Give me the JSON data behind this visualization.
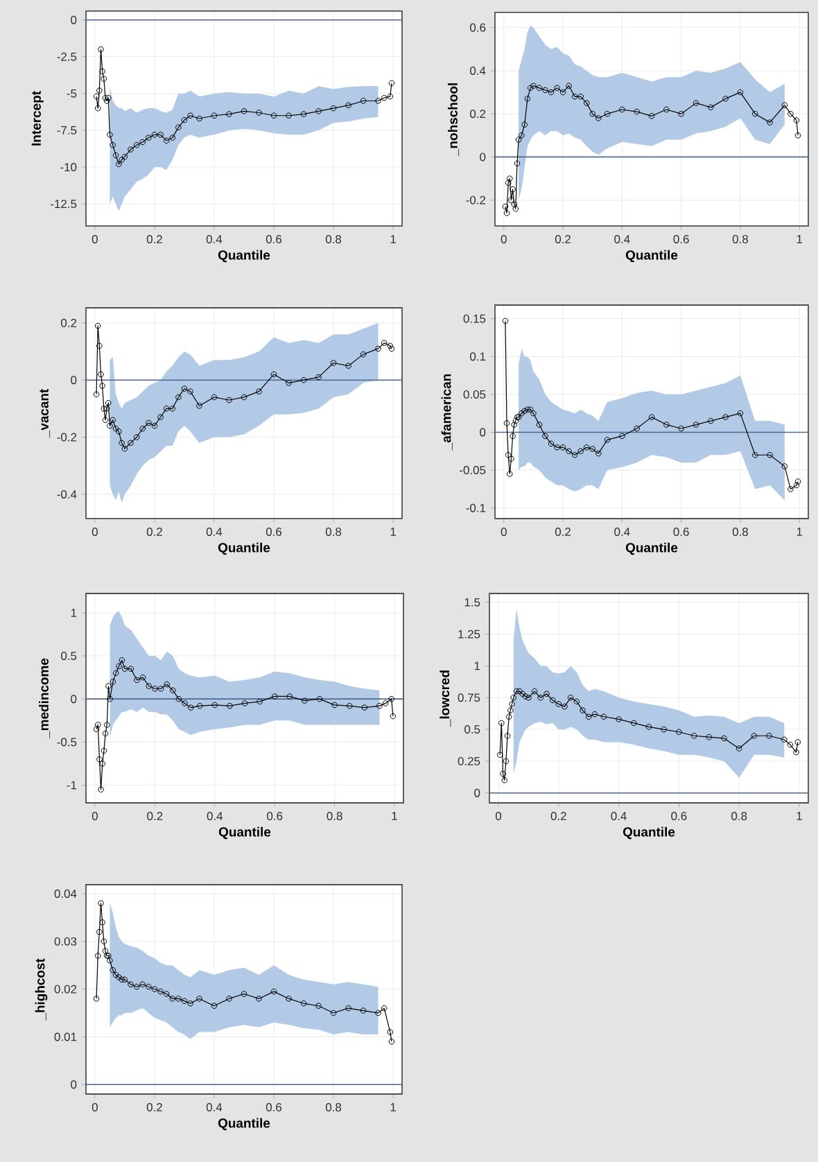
{
  "chart_data": [
    {
      "type": "line",
      "xlabel": "Quantile",
      "ylabel": "Intercept",
      "xlim": [
        -0.03,
        1.03
      ],
      "xticks": [
        0,
        0.2,
        0.4,
        0.6,
        0.8,
        1
      ],
      "ylim": [
        -14,
        0.6
      ],
      "yticks": [
        0,
        -2.5,
        -5,
        -7.5,
        -10,
        -12.5
      ],
      "grid": true,
      "marker": "circle",
      "ref_lines": [
        {
          "axis": "y",
          "value": 0,
          "color": "#4a6890"
        }
      ],
      "x": [
        0.005,
        0.01,
        0.015,
        0.02,
        0.025,
        0.03,
        0.035,
        0.04,
        0.045,
        0.05,
        0.06,
        0.07,
        0.08,
        0.09,
        0.1,
        0.12,
        0.14,
        0.16,
        0.18,
        0.2,
        0.22,
        0.24,
        0.26,
        0.28,
        0.3,
        0.32,
        0.35,
        0.4,
        0.45,
        0.5,
        0.55,
        0.6,
        0.65,
        0.7,
        0.75,
        0.8,
        0.85,
        0.9,
        0.95,
        0.97,
        0.99,
        0.995
      ],
      "series": [
        {
          "color": "#000000",
          "values": [
            -5.2,
            -6,
            -4.8,
            -2,
            -3.5,
            -4,
            -5.3,
            -5.5,
            -5.3,
            -7.8,
            -8.5,
            -9.2,
            -9.8,
            -9.5,
            -9.3,
            -8.8,
            -8.5,
            -8.3,
            -8,
            -7.8,
            -7.8,
            -8.2,
            -8,
            -7.3,
            -6.8,
            -6.5,
            -6.7,
            -6.5,
            -6.4,
            -6.2,
            -6.3,
            -6.5,
            -6.5,
            -6.4,
            -6.2,
            -6,
            -5.8,
            -5.5,
            -5.5,
            -5.3,
            -5.2,
            -4.3
          ],
          "upper": [
            null,
            null,
            null,
            null,
            null,
            null,
            null,
            null,
            null,
            -4.5,
            -5.5,
            -5.8,
            -6,
            -6,
            -6.2,
            -6,
            -6.3,
            -6.1,
            -6,
            -6,
            -6.2,
            -6.3,
            -6.1,
            -5,
            -5,
            -4.8,
            -5.2,
            -5,
            -4.9,
            -5,
            -5,
            -5.2,
            -4.8,
            -5,
            -4.5,
            -4.7,
            -4.55,
            -4.5,
            -4.5,
            null,
            null,
            null
          ],
          "lower": [
            null,
            null,
            null,
            null,
            null,
            null,
            null,
            null,
            null,
            -12.5,
            -12,
            -12.5,
            -13,
            -12.5,
            -12,
            -11.5,
            -11,
            -10.8,
            -10.5,
            -10,
            -10,
            -10.2,
            -9.5,
            -8.5,
            -8,
            -7.8,
            -8,
            -7.8,
            -7.5,
            -7.4,
            -7.5,
            -7.7,
            -7.8,
            -7.8,
            -7.5,
            -7,
            -6.9,
            -6.7,
            -6.6,
            null,
            null,
            null
          ]
        }
      ]
    },
    {
      "type": "line",
      "xlabel": "Quantile",
      "ylabel": "_nohschool",
      "xlim": [
        -0.03,
        1.03
      ],
      "xticks": [
        0,
        0.2,
        0.4,
        0.6,
        0.8,
        1
      ],
      "ylim": [
        -0.32,
        0.67
      ],
      "yticks": [
        -0.2,
        0,
        0.2,
        0.4,
        0.6
      ],
      "grid": true,
      "marker": "circle",
      "ref_lines": [
        {
          "axis": "y",
          "value": 0,
          "color": "#4a6890"
        }
      ],
      "x": [
        0.005,
        0.01,
        0.015,
        0.02,
        0.025,
        0.03,
        0.035,
        0.04,
        0.045,
        0.05,
        0.06,
        0.07,
        0.08,
        0.09,
        0.1,
        0.12,
        0.14,
        0.16,
        0.18,
        0.2,
        0.22,
        0.24,
        0.26,
        0.28,
        0.3,
        0.32,
        0.35,
        0.4,
        0.45,
        0.5,
        0.55,
        0.6,
        0.65,
        0.7,
        0.75,
        0.8,
        0.85,
        0.9,
        0.95,
        0.97,
        0.99,
        0.995
      ],
      "series": [
        {
          "color": "#000000",
          "values": [
            -0.23,
            -0.26,
            -0.12,
            -0.1,
            -0.2,
            -0.15,
            -0.22,
            -0.24,
            -0.03,
            0.08,
            0.1,
            0.15,
            0.27,
            0.32,
            0.33,
            0.32,
            0.31,
            0.3,
            0.32,
            0.3,
            0.33,
            0.28,
            0.28,
            0.25,
            0.2,
            0.18,
            0.2,
            0.22,
            0.21,
            0.19,
            0.22,
            0.2,
            0.25,
            0.23,
            0.27,
            0.3,
            0.2,
            0.16,
            0.24,
            0.2,
            0.17,
            0.1
          ],
          "upper": [
            null,
            null,
            null,
            null,
            null,
            null,
            null,
            null,
            null,
            0.4,
            0.45,
            0.5,
            0.58,
            0.61,
            0.6,
            0.56,
            0.52,
            0.5,
            0.51,
            0.48,
            0.47,
            0.43,
            0.42,
            0.4,
            0.38,
            0.37,
            0.37,
            0.39,
            0.37,
            0.35,
            0.37,
            0.37,
            0.4,
            0.39,
            0.41,
            0.44,
            0.36,
            0.3,
            0.34,
            null,
            null,
            null
          ],
          "lower": [
            null,
            null,
            null,
            null,
            null,
            null,
            null,
            null,
            null,
            -0.2,
            -0.15,
            -0.05,
            0.05,
            0.08,
            0.1,
            0.12,
            0.1,
            0.12,
            0.12,
            0.1,
            0.11,
            0.09,
            0.08,
            0.05,
            0.025,
            0.01,
            0.04,
            0.07,
            0.06,
            0.05,
            0.08,
            0.08,
            0.11,
            0.12,
            0.14,
            0.18,
            0.08,
            0.06,
            0.15,
            null,
            null,
            null
          ]
        }
      ]
    },
    {
      "type": "line",
      "xlabel": "Quantile",
      "ylabel": "_vacant",
      "xlim": [
        -0.03,
        1.03
      ],
      "xticks": [
        0,
        0.2,
        0.4,
        0.6,
        0.8,
        1
      ],
      "ylim": [
        -0.485,
        0.253
      ],
      "yticks": [
        -0.4,
        -0.2,
        0,
        0.2
      ],
      "grid": true,
      "marker": "circle",
      "ref_lines": [
        {
          "axis": "y",
          "value": 0,
          "color": "#4a6890"
        }
      ],
      "x": [
        0.005,
        0.01,
        0.015,
        0.02,
        0.025,
        0.03,
        0.035,
        0.04,
        0.045,
        0.05,
        0.06,
        0.07,
        0.08,
        0.09,
        0.1,
        0.12,
        0.14,
        0.16,
        0.18,
        0.2,
        0.22,
        0.24,
        0.26,
        0.28,
        0.3,
        0.32,
        0.35,
        0.4,
        0.45,
        0.5,
        0.55,
        0.6,
        0.65,
        0.7,
        0.75,
        0.8,
        0.85,
        0.9,
        0.95,
        0.97,
        0.99,
        0.995
      ],
      "series": [
        {
          "color": "#000000",
          "values": [
            -0.05,
            0.19,
            0.12,
            0.02,
            -0.02,
            -0.1,
            -0.14,
            -0.1,
            -0.08,
            -0.16,
            -0.14,
            -0.17,
            -0.18,
            -0.22,
            -0.24,
            -0.22,
            -0.2,
            -0.17,
            -0.15,
            -0.16,
            -0.13,
            -0.1,
            -0.1,
            -0.06,
            -0.03,
            -0.04,
            -0.09,
            -0.06,
            -0.07,
            -0.06,
            -0.04,
            0.02,
            -0.01,
            0,
            0.01,
            0.06,
            0.05,
            0.09,
            0.11,
            0.13,
            0.12,
            0.11
          ],
          "upper": [
            null,
            null,
            null,
            null,
            null,
            null,
            null,
            null,
            null,
            0.07,
            0.08,
            -0.05,
            -0.08,
            -0.1,
            -0.08,
            -0.07,
            -0.06,
            -0.04,
            -0.02,
            -0.01,
            0,
            0.03,
            0.05,
            0.08,
            0.1,
            0.09,
            0.05,
            0.07,
            0.07,
            0.08,
            0.1,
            0.15,
            0.13,
            0.14,
            0.13,
            0.16,
            0.16,
            0.18,
            0.2,
            null,
            null,
            null
          ],
          "lower": [
            null,
            null,
            null,
            null,
            null,
            null,
            null,
            null,
            null,
            -0.37,
            -0.4,
            -0.42,
            -0.39,
            -0.43,
            -0.4,
            -0.37,
            -0.33,
            -0.3,
            -0.28,
            -0.27,
            -0.25,
            -0.23,
            -0.23,
            -0.18,
            -0.16,
            -0.18,
            -0.22,
            -0.2,
            -0.2,
            -0.19,
            -0.16,
            -0.12,
            -0.12,
            -0.115,
            -0.1,
            -0.06,
            -0.05,
            -0.01,
            0,
            null,
            null,
            null
          ]
        }
      ]
    },
    {
      "type": "line",
      "xlabel": "Quantile",
      "ylabel": "_afamerican",
      "xlim": [
        -0.03,
        1.03
      ],
      "xticks": [
        0,
        0.2,
        0.4,
        0.6,
        0.8,
        1
      ],
      "ylim": [
        -0.114,
        0.168
      ],
      "yticks": [
        -0.1,
        -0.05,
        0,
        0.05,
        0.1,
        0.15
      ],
      "grid": true,
      "marker": "circle",
      "ref_lines": [
        {
          "axis": "y",
          "value": 0,
          "color": "#4a6890"
        }
      ],
      "x": [
        0.005,
        0.01,
        0.015,
        0.02,
        0.025,
        0.03,
        0.035,
        0.04,
        0.045,
        0.05,
        0.06,
        0.07,
        0.08,
        0.09,
        0.1,
        0.12,
        0.14,
        0.16,
        0.18,
        0.2,
        0.22,
        0.24,
        0.26,
        0.28,
        0.3,
        0.32,
        0.35,
        0.4,
        0.45,
        0.5,
        0.55,
        0.6,
        0.65,
        0.7,
        0.75,
        0.8,
        0.85,
        0.9,
        0.95,
        0.97,
        0.99,
        0.995
      ],
      "series": [
        {
          "color": "#000000",
          "values": [
            0.147,
            0.012,
            -0.03,
            -0.055,
            -0.035,
            -0.005,
            0.01,
            0.015,
            0.02,
            0.02,
            0.025,
            0.028,
            0.03,
            0.03,
            0.025,
            0.01,
            -0.005,
            -0.015,
            -0.02,
            -0.02,
            -0.025,
            -0.03,
            -0.025,
            -0.02,
            -0.022,
            -0.028,
            -0.01,
            -0.005,
            0.005,
            0.02,
            0.01,
            0.005,
            0.01,
            0.015,
            0.02,
            0.025,
            -0.03,
            -0.03,
            -0.045,
            -0.075,
            -0.07,
            -0.065
          ],
          "upper": [
            null,
            null,
            null,
            null,
            null,
            null,
            null,
            null,
            null,
            0.09,
            0.11,
            0.1,
            0.1,
            0.095,
            0.08,
            0.07,
            0.05,
            0.04,
            0.035,
            0.03,
            0.028,
            0.025,
            0.03,
            0.025,
            0.022,
            0.015,
            0.04,
            0.045,
            0.052,
            0.055,
            0.05,
            0.05,
            0.055,
            0.06,
            0.065,
            0.075,
            0.015,
            0.015,
            0.01,
            null,
            null,
            null
          ],
          "lower": [
            null,
            null,
            null,
            null,
            null,
            null,
            null,
            null,
            null,
            -0.05,
            -0.045,
            -0.045,
            -0.04,
            -0.04,
            -0.045,
            -0.05,
            -0.06,
            -0.065,
            -0.07,
            -0.07,
            -0.075,
            -0.078,
            -0.075,
            -0.07,
            -0.07,
            -0.075,
            -0.05,
            -0.046,
            -0.04,
            -0.03,
            -0.033,
            -0.04,
            -0.04,
            -0.03,
            -0.03,
            -0.025,
            -0.075,
            -0.07,
            -0.09,
            null,
            null,
            null
          ]
        }
      ]
    },
    {
      "type": "line",
      "xlabel": "Quantile",
      "ylabel": "_medincome",
      "xlim": [
        -0.03,
        1.03
      ],
      "xticks": [
        0,
        0.2,
        0.4,
        0.6,
        0.8,
        1
      ],
      "ylim": [
        -1.205,
        1.224
      ],
      "yticks": [
        -1,
        -0.5,
        0,
        0.5,
        1
      ],
      "grid": true,
      "marker": "circle",
      "ref_lines": [
        {
          "axis": "y",
          "value": 0,
          "color": "#4a6890"
        }
      ],
      "x": [
        0.005,
        0.01,
        0.015,
        0.02,
        0.025,
        0.03,
        0.035,
        0.04,
        0.045,
        0.05,
        0.06,
        0.07,
        0.08,
        0.09,
        0.1,
        0.12,
        0.14,
        0.16,
        0.18,
        0.2,
        0.22,
        0.24,
        0.26,
        0.28,
        0.3,
        0.32,
        0.35,
        0.4,
        0.45,
        0.5,
        0.55,
        0.6,
        0.65,
        0.7,
        0.75,
        0.8,
        0.85,
        0.9,
        0.95,
        0.97,
        0.99,
        0.995
      ],
      "series": [
        {
          "color": "#000000",
          "values": [
            -0.35,
            -0.3,
            -0.7,
            -1.05,
            -0.75,
            -0.6,
            -0.4,
            -0.3,
            0.15,
            0,
            0.2,
            0.3,
            0.38,
            0.45,
            0.35,
            0.35,
            0.22,
            0.25,
            0.15,
            0.12,
            0.12,
            0.17,
            0.1,
            0,
            -0.05,
            -0.1,
            -0.08,
            -0.07,
            -0.08,
            -0.05,
            -0.03,
            0.03,
            0.03,
            -0.02,
            0,
            -0.07,
            -0.08,
            -0.1,
            -0.08,
            -0.05,
            0,
            -0.2
          ],
          "upper": [
            null,
            null,
            null,
            null,
            null,
            null,
            null,
            null,
            null,
            0.85,
            0.95,
            1.0,
            1.02,
            0.95,
            0.85,
            0.8,
            0.7,
            0.6,
            0.5,
            0.5,
            0.45,
            0.55,
            0.5,
            0.35,
            0.3,
            0.27,
            0.25,
            0.27,
            0.2,
            0.22,
            0.25,
            0.32,
            0.3,
            0.25,
            0.22,
            0.2,
            0.15,
            0.12,
            0.1,
            null,
            null,
            null
          ],
          "lower": [
            null,
            null,
            null,
            null,
            null,
            null,
            null,
            null,
            null,
            -0.45,
            -0.3,
            -0.25,
            -0.2,
            -0.15,
            -0.15,
            -0.12,
            -0.15,
            -0.1,
            -0.15,
            -0.15,
            -0.18,
            -0.18,
            -0.25,
            -0.35,
            -0.38,
            -0.42,
            -0.38,
            -0.35,
            -0.33,
            -0.3,
            -0.3,
            -0.25,
            -0.25,
            -0.3,
            -0.3,
            -0.3,
            -0.3,
            -0.3,
            -0.3,
            null,
            null,
            null
          ]
        }
      ]
    },
    {
      "type": "line",
      "xlabel": "Quantile",
      "ylabel": "_lowcred",
      "xlim": [
        -0.03,
        1.03
      ],
      "xticks": [
        0,
        0.2,
        0.4,
        0.6,
        0.8,
        1
      ],
      "ylim": [
        -0.078,
        1.57
      ],
      "yticks": [
        0,
        0.25,
        0.5,
        0.75,
        1,
        1.25,
        1.5
      ],
      "grid": true,
      "marker": "circle",
      "ref_lines": [
        {
          "axis": "y",
          "value": 0,
          "color": "#4a6890"
        }
      ],
      "x": [
        0.005,
        0.01,
        0.015,
        0.02,
        0.025,
        0.03,
        0.035,
        0.04,
        0.045,
        0.05,
        0.06,
        0.07,
        0.08,
        0.09,
        0.1,
        0.12,
        0.14,
        0.16,
        0.18,
        0.2,
        0.22,
        0.24,
        0.26,
        0.28,
        0.3,
        0.32,
        0.35,
        0.4,
        0.45,
        0.5,
        0.55,
        0.6,
        0.65,
        0.7,
        0.75,
        0.8,
        0.85,
        0.9,
        0.95,
        0.97,
        0.99,
        0.995
      ],
      "series": [
        {
          "color": "#000000",
          "values": [
            0.3,
            0.55,
            0.15,
            0.1,
            0.25,
            0.45,
            0.6,
            0.65,
            0.7,
            0.75,
            0.8,
            0.8,
            0.78,
            0.76,
            0.75,
            0.8,
            0.75,
            0.78,
            0.73,
            0.7,
            0.68,
            0.75,
            0.72,
            0.65,
            0.6,
            0.62,
            0.6,
            0.58,
            0.55,
            0.52,
            0.5,
            0.48,
            0.45,
            0.44,
            0.43,
            0.35,
            0.45,
            0.45,
            0.42,
            0.38,
            0.32,
            0.4
          ],
          "upper": [
            null,
            null,
            null,
            null,
            null,
            null,
            null,
            null,
            null,
            1.2,
            1.45,
            1.3,
            1.2,
            1.15,
            1.1,
            1.06,
            1.0,
            1.0,
            0.95,
            0.94,
            0.95,
            1.0,
            0.95,
            0.85,
            0.8,
            0.82,
            0.8,
            0.75,
            0.72,
            0.7,
            0.68,
            0.65,
            0.6,
            0.61,
            0.6,
            0.55,
            0.6,
            0.6,
            0.55,
            null,
            null,
            null
          ],
          "lower": [
            null,
            null,
            null,
            null,
            null,
            null,
            null,
            null,
            null,
            0.15,
            0.25,
            0.4,
            0.45,
            0.5,
            0.52,
            0.55,
            0.56,
            0.54,
            0.55,
            0.5,
            0.5,
            0.52,
            0.5,
            0.45,
            0.42,
            0.42,
            0.4,
            0.4,
            0.38,
            0.35,
            0.33,
            0.3,
            0.3,
            0.28,
            0.25,
            0.12,
            0.3,
            0.3,
            0.28,
            null,
            null,
            null
          ]
        }
      ]
    },
    {
      "type": "line",
      "xlabel": "Quantile",
      "ylabel": "_highcost",
      "xlim": [
        -0.03,
        1.03
      ],
      "xticks": [
        0,
        0.2,
        0.4,
        0.6,
        0.8,
        1
      ],
      "ylim": [
        -0.002,
        0.0419
      ],
      "yticks": [
        0,
        0.01,
        0.02,
        0.03,
        0.04
      ],
      "grid": true,
      "marker": "circle",
      "ref_lines": [
        {
          "axis": "y",
          "value": 0,
          "color": "#4a6890"
        }
      ],
      "x": [
        0.005,
        0.01,
        0.015,
        0.02,
        0.025,
        0.03,
        0.035,
        0.04,
        0.045,
        0.05,
        0.06,
        0.07,
        0.08,
        0.09,
        0.1,
        0.12,
        0.14,
        0.16,
        0.18,
        0.2,
        0.22,
        0.24,
        0.26,
        0.28,
        0.3,
        0.32,
        0.35,
        0.4,
        0.45,
        0.5,
        0.55,
        0.6,
        0.65,
        0.7,
        0.75,
        0.8,
        0.85,
        0.9,
        0.95,
        0.97,
        0.99,
        0.995
      ],
      "series": [
        {
          "color": "#000000",
          "values": [
            0.018,
            0.027,
            0.032,
            0.038,
            0.034,
            0.03,
            0.028,
            0.027,
            0.027,
            0.026,
            0.024,
            0.023,
            0.0225,
            0.022,
            0.022,
            0.021,
            0.0205,
            0.021,
            0.0205,
            0.02,
            0.0195,
            0.019,
            0.018,
            0.018,
            0.0175,
            0.017,
            0.018,
            0.0165,
            0.018,
            0.019,
            0.018,
            0.0195,
            0.018,
            0.017,
            0.0165,
            0.015,
            0.016,
            0.0155,
            0.015,
            0.016,
            0.011,
            0.009
          ],
          "upper": [
            null,
            null,
            null,
            null,
            null,
            null,
            null,
            null,
            null,
            0.038,
            0.036,
            0.033,
            0.031,
            0.03,
            0.0295,
            0.029,
            0.0287,
            0.028,
            0.027,
            0.0265,
            0.0255,
            0.025,
            0.025,
            0.024,
            0.023,
            0.0225,
            0.024,
            0.023,
            0.024,
            0.0245,
            0.023,
            0.025,
            0.023,
            0.022,
            0.0215,
            0.021,
            0.0215,
            0.021,
            0.0205,
            null,
            null,
            null
          ],
          "lower": [
            null,
            null,
            null,
            null,
            null,
            null,
            null,
            null,
            null,
            0.012,
            0.013,
            0.014,
            0.0145,
            0.0145,
            0.015,
            0.015,
            0.0155,
            0.016,
            0.015,
            0.014,
            0.0135,
            0.013,
            0.012,
            0.011,
            0.0105,
            0.0095,
            0.011,
            0.011,
            0.012,
            0.0125,
            0.012,
            0.013,
            0.0125,
            0.0118,
            0.0115,
            0.0105,
            0.011,
            0.0105,
            0.0105,
            null,
            null,
            null
          ]
        }
      ]
    }
  ]
}
